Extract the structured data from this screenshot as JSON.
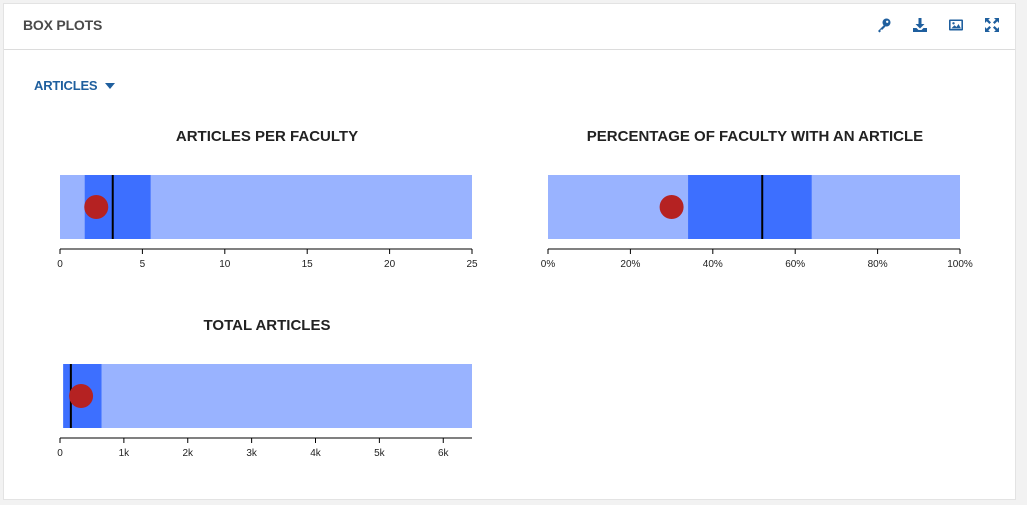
{
  "panel": {
    "title": "BOX PLOTS",
    "tools": [
      "key-icon",
      "download-icon",
      "image-icon",
      "fullscreen-icon"
    ]
  },
  "dropdown": {
    "label": "ARTICLES"
  },
  "colors": {
    "range": "#99b3ff",
    "iqr": "#3d6fff",
    "median": "#000000",
    "marker": "#b52222",
    "accent": "#1f5f9e"
  },
  "chart_data": [
    {
      "type": "box",
      "title": "ARTICLES PER FACULTY",
      "xlim": [
        0,
        25
      ],
      "ticks": [
        0,
        5,
        10,
        15,
        20,
        25
      ],
      "tick_labels": [
        "0",
        "5",
        "10",
        "15",
        "20",
        "25"
      ],
      "min": 0,
      "q1": 1.5,
      "median": 3.2,
      "q3": 5.5,
      "max": 25,
      "marker": 2.2
    },
    {
      "type": "box",
      "title": "PERCENTAGE OF FACULTY WITH AN ARTICLE",
      "xlim": [
        0,
        100
      ],
      "ticks": [
        0,
        20,
        40,
        60,
        80,
        100
      ],
      "tick_labels": [
        "0%",
        "20%",
        "40%",
        "60%",
        "80%",
        "100%"
      ],
      "min": 0,
      "q1": 34,
      "median": 52,
      "q3": 64,
      "max": 100,
      "marker": 30
    },
    {
      "type": "box",
      "title": "TOTAL ARTICLES",
      "xlim": [
        0,
        6450
      ],
      "ticks": [
        0,
        1000,
        2000,
        3000,
        4000,
        5000,
        6000
      ],
      "tick_labels": [
        "0",
        "1k",
        "2k",
        "3k",
        "4k",
        "5k",
        "6k"
      ],
      "min": 50,
      "q1": 50,
      "median": 170,
      "q3": 650,
      "max": 6450,
      "marker": 330
    }
  ]
}
